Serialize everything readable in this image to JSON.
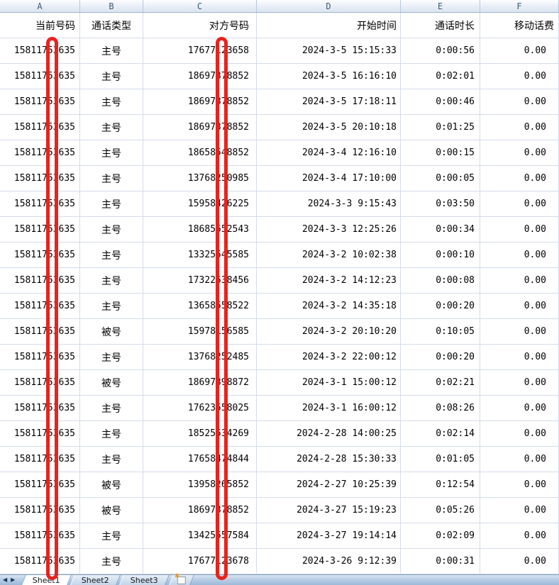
{
  "column_strip": {
    "letters": [
      "A",
      "B",
      "C",
      "D",
      "E",
      "F"
    ]
  },
  "table": {
    "headers": [
      "当前号码",
      "通话类型",
      "对方号码",
      "开始时间",
      "通话时长",
      "移动话费"
    ],
    "rows": [
      {
        "a": "15811753635",
        "b": "主号",
        "c": "17677123658",
        "d": "2024-3-5 15:15:33",
        "e": "0:00:56",
        "f": "0.00"
      },
      {
        "a": "15811753635",
        "b": "主号",
        "c": "18697378852",
        "d": "2024-3-5 16:16:10",
        "e": "0:02:01",
        "f": "0.00"
      },
      {
        "a": "15811753635",
        "b": "主号",
        "c": "18697378852",
        "d": "2024-3-5 17:18:11",
        "e": "0:00:46",
        "f": "0.00"
      },
      {
        "a": "15811753635",
        "b": "主号",
        "c": "18697378852",
        "d": "2024-3-5 20:10:18",
        "e": "0:01:25",
        "f": "0.00"
      },
      {
        "a": "15811753635",
        "b": "主号",
        "c": "18658548852",
        "d": "2024-3-4 12:16:10",
        "e": "0:00:15",
        "f": "0.00"
      },
      {
        "a": "15811753635",
        "b": "主号",
        "c": "13768250985",
        "d": "2024-3-4 17:10:00",
        "e": "0:00:05",
        "f": "0.00"
      },
      {
        "a": "15811753635",
        "b": "主号",
        "c": "15958426225",
        "d": "2024-3-3 9:15:43",
        "e": "0:03:50",
        "f": "0.00"
      },
      {
        "a": "15811753635",
        "b": "主号",
        "c": "18685552543",
        "d": "2024-3-3 12:25:26",
        "e": "0:00:34",
        "f": "0.00"
      },
      {
        "a": "15811753635",
        "b": "主号",
        "c": "13325545585",
        "d": "2024-3-2 10:02:38",
        "e": "0:00:10",
        "f": "0.00"
      },
      {
        "a": "15811753635",
        "b": "主号",
        "c": "17322538456",
        "d": "2024-3-2 14:12:23",
        "e": "0:00:08",
        "f": "0.00"
      },
      {
        "a": "15811753635",
        "b": "主号",
        "c": "13658558522",
        "d": "2024-3-2 14:35:18",
        "e": "0:00:20",
        "f": "0.00"
      },
      {
        "a": "15811753635",
        "b": "被号",
        "c": "15978156585",
        "d": "2024-3-2 20:10:20",
        "e": "0:10:05",
        "f": "0.00"
      },
      {
        "a": "15811753635",
        "b": "主号",
        "c": "13768252485",
        "d": "2024-3-2 22:00:12",
        "e": "0:00:20",
        "f": "0.00"
      },
      {
        "a": "15811753635",
        "b": "被号",
        "c": "18697398872",
        "d": "2024-3-1 15:00:12",
        "e": "0:02:21",
        "f": "0.00"
      },
      {
        "a": "15811753635",
        "b": "主号",
        "c": "17623558025",
        "d": "2024-3-1 16:00:12",
        "e": "0:08:26",
        "f": "0.00"
      },
      {
        "a": "15811753635",
        "b": "主号",
        "c": "18525534269",
        "d": "2024-2-28 14:00:25",
        "e": "0:02:14",
        "f": "0.00"
      },
      {
        "a": "15811753635",
        "b": "主号",
        "c": "17658474844",
        "d": "2024-2-28 15:30:33",
        "e": "0:01:05",
        "f": "0.00"
      },
      {
        "a": "15811753635",
        "b": "被号",
        "c": "13958265852",
        "d": "2024-2-27 10:25:39",
        "e": "0:12:54",
        "f": "0.00"
      },
      {
        "a": "15811753635",
        "b": "被号",
        "c": "18697378852",
        "d": "2024-3-27 15:19:23",
        "e": "0:05:26",
        "f": "0.00"
      },
      {
        "a": "15811753635",
        "b": "主号",
        "c": "13425557584",
        "d": "2024-3-27 19:14:14",
        "e": "0:02:09",
        "f": "0.00"
      },
      {
        "a": "15811753635",
        "b": "主号",
        "c": "17677123678",
        "d": "2024-3-26 9:12:39",
        "e": "0:00:31",
        "f": "0.00"
      }
    ]
  },
  "tabs": {
    "items": [
      "Sheet1",
      "Sheet2",
      "Sheet3"
    ],
    "active": "Sheet1",
    "nav_prev": "◀",
    "nav_next": "▶",
    "insert_star": "✱"
  },
  "annotations": {
    "color": "#e8231d",
    "bars": [
      {
        "column": "A",
        "covers": "digit of 当前号码"
      },
      {
        "column": "C",
        "covers": "digit of 对方号码"
      }
    ]
  },
  "colors": {
    "gridline": "#d4dbe8",
    "column_strip_text": "#3c5a76",
    "tab_bar_bg": "#aac3df"
  }
}
